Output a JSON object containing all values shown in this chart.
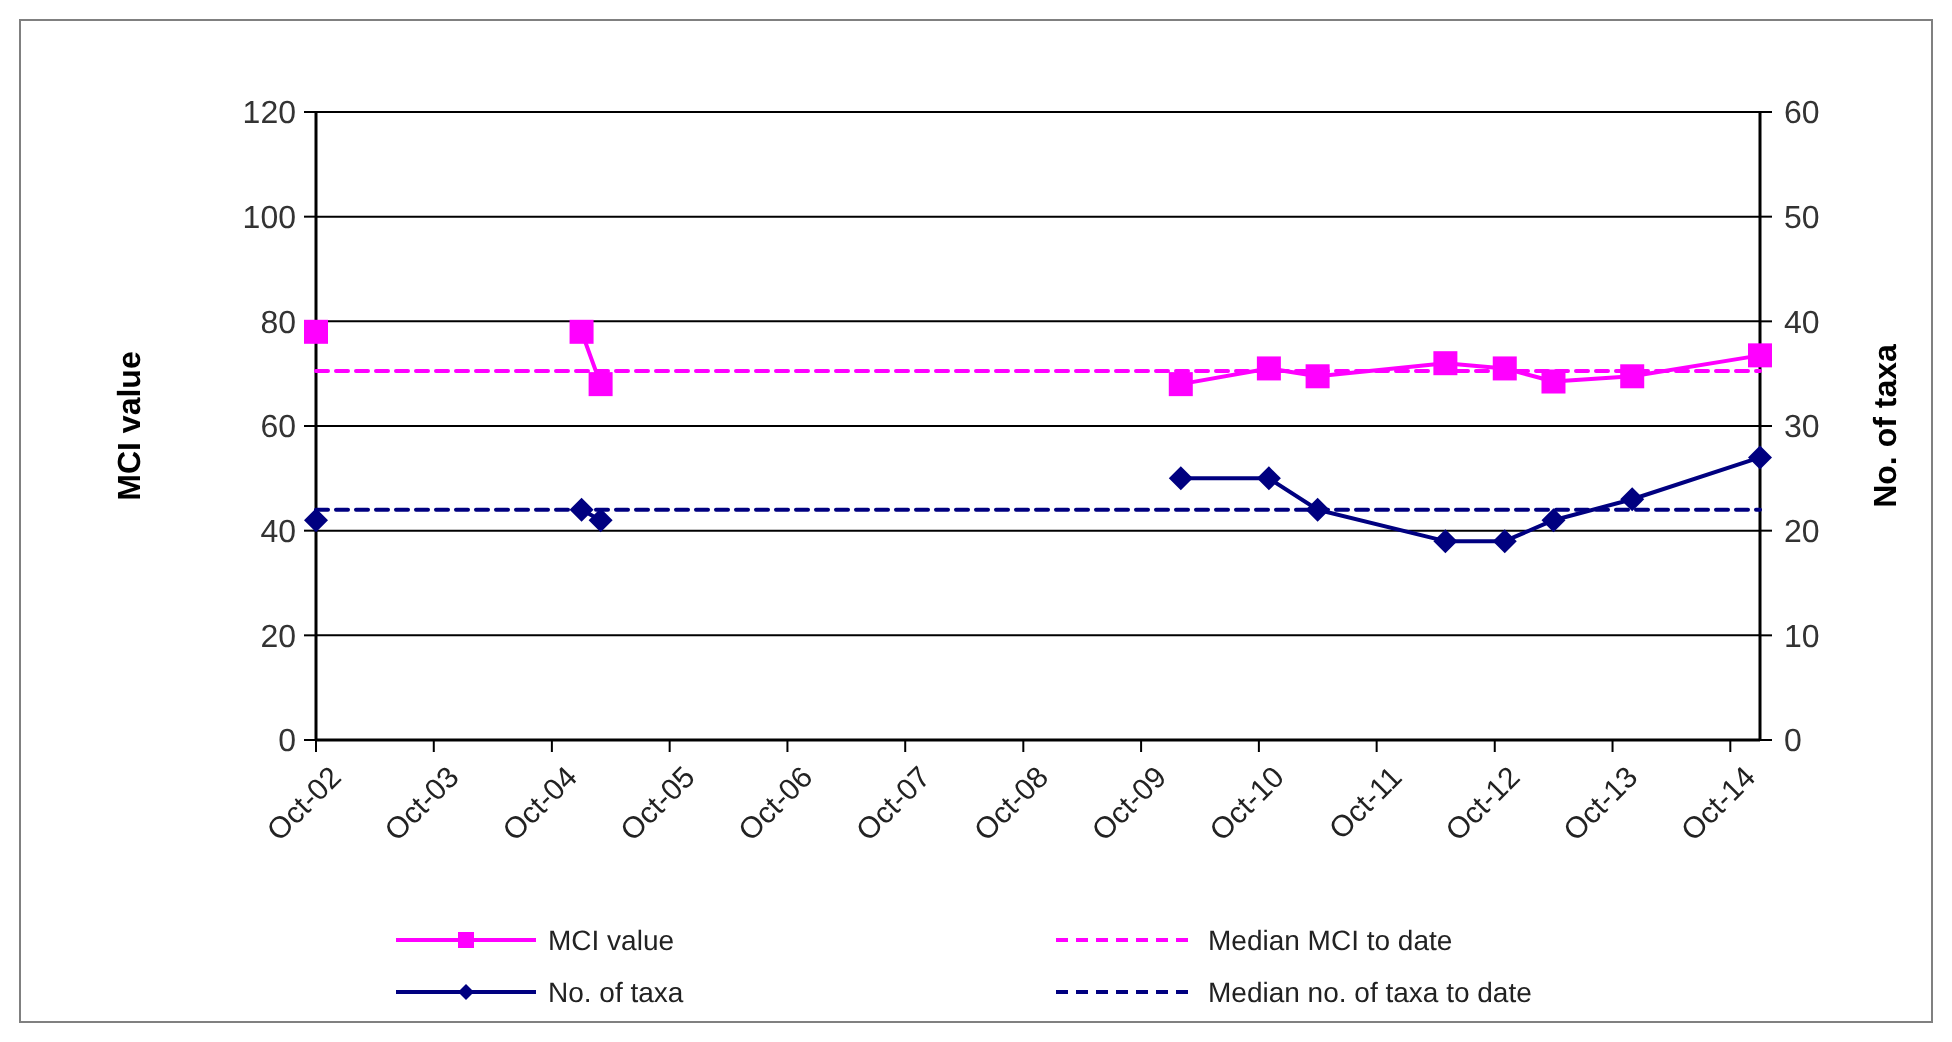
{
  "chart_data": {
    "type": "line",
    "ylabel": "MCI value",
    "y2label": "No. of taxa",
    "xlim": [
      "2002-10",
      "2015-01"
    ],
    "xticks": [
      {
        "value": "2002-10",
        "label": "Oct-02"
      },
      {
        "value": "2003-10",
        "label": "Oct-03"
      },
      {
        "value": "2004-10",
        "label": "Oct-04"
      },
      {
        "value": "2005-10",
        "label": "Oct-05"
      },
      {
        "value": "2006-10",
        "label": "Oct-06"
      },
      {
        "value": "2007-10",
        "label": "Oct-07"
      },
      {
        "value": "2008-10",
        "label": "Oct-08"
      },
      {
        "value": "2009-10",
        "label": "Oct-09"
      },
      {
        "value": "2010-10",
        "label": "Oct-10"
      },
      {
        "value": "2011-10",
        "label": "Oct-11"
      },
      {
        "value": "2012-10",
        "label": "Oct-12"
      },
      {
        "value": "2013-10",
        "label": "Oct-13"
      },
      {
        "value": "2014-10",
        "label": "Oct-14"
      }
    ],
    "ylim": [
      0,
      120
    ],
    "yticks": [
      0,
      20,
      40,
      60,
      80,
      100,
      120
    ],
    "y2lim": [
      0,
      60
    ],
    "y2ticks": [
      0,
      10,
      20,
      30,
      40,
      50,
      60
    ],
    "grid": "y",
    "legend": "bottom",
    "line_style": "solid",
    "series": [
      {
        "name": "MCI value",
        "color": "#ff00ff",
        "marker": "square",
        "x": [
          "2002-10",
          "2003-10",
          "2005-01",
          "2005-03",
          "2007-10",
          "2010-02",
          "2010-11",
          "2011-04",
          "2012-05",
          "2012-11",
          "2013-04",
          "2013-12",
          "2015-01"
        ],
        "values": [
          78,
          null,
          78,
          68,
          null,
          68,
          71,
          69.5,
          72,
          71,
          68.5,
          69.5,
          73.5
        ]
      },
      {
        "name": "No. of taxa",
        "color": "#000080",
        "marker": "diamond",
        "axis": "y2",
        "x": [
          "2002-10",
          "2003-10",
          "2005-01",
          "2005-03",
          "2007-10",
          "2010-02",
          "2010-11",
          "2011-04",
          "2012-05",
          "2012-11",
          "2013-04",
          "2013-12",
          "2015-01"
        ],
        "values": [
          21,
          null,
          22,
          21,
          null,
          25,
          25,
          22,
          19,
          19,
          21,
          23,
          27
        ]
      },
      {
        "name": "Median MCI to date",
        "color": "#ff00ff",
        "marker": "none",
        "line_style": "dashed",
        "x": [
          "2002-10",
          "2015-01"
        ],
        "values": [
          70.5,
          70.5
        ]
      },
      {
        "name": "Median no. of taxa to date",
        "color": "#000080",
        "marker": "none",
        "line_style": "dashed",
        "axis": "y2",
        "x": [
          "2002-10",
          "2015-01"
        ],
        "values": [
          22,
          22
        ]
      }
    ]
  }
}
